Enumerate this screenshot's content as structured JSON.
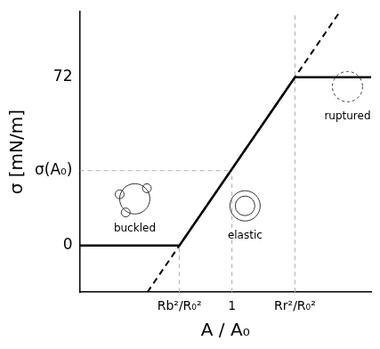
{
  "chart_data": {
    "type": "line",
    "x_label": "A / A₀",
    "y_label": "σ [mN/m]",
    "xlim": [
      0.42,
      1.53
    ],
    "ylim": [
      -20,
      100
    ],
    "xticks": [
      {
        "value": 0.8,
        "label": "Rb²/R₀²"
      },
      1,
      {
        "value": 1.24,
        "label": "Rr²/R₀²"
      }
    ],
    "yticks": [
      0,
      {
        "value": 32,
        "label": "σ(A₀)"
      },
      72
    ],
    "grid": false,
    "series": [
      {
        "x": [
          0.42,
          0.8,
          1.24,
          1.53
        ],
        "values": [
          0,
          0,
          72,
          72
        ],
        "color": "#000000",
        "line_style": "solid"
      },
      {
        "x": [
          0.678,
          1.411
        ],
        "values": [
          -20,
          100
        ],
        "color": "#000000",
        "line_style": "dashed"
      },
      {
        "x": [
          0.8,
          0.8
        ],
        "values": [
          -20,
          0
        ],
        "color": "#b0b0b0",
        "line_style": "dashed"
      },
      {
        "x": [
          1,
          1
        ],
        "values": [
          -20,
          32
        ],
        "color": "#b0b0b0",
        "line_style": "dashed"
      },
      {
        "x": [
          0.42,
          1
        ],
        "values": [
          32,
          32
        ],
        "color": "#b0b0b0",
        "line_style": "dashed"
      },
      {
        "x": [
          1.24,
          1.24
        ],
        "values": [
          -20,
          100
        ],
        "color": "#b0b0b0",
        "line_style": "dashed"
      }
    ],
    "annotations": [
      {
        "text": "buckled",
        "x": 0.63,
        "y": 7
      },
      {
        "text": "elastic",
        "x": 1.05,
        "y": 4
      },
      {
        "text": "ruptured",
        "x": 1.44,
        "y": 55
      }
    ]
  }
}
